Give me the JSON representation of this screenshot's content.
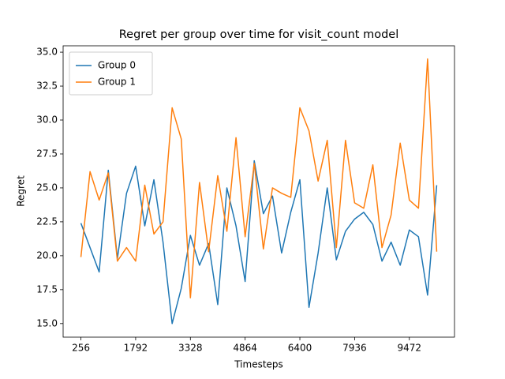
{
  "chart_data": {
    "type": "line",
    "title": "Regret per group over time for visit_count model",
    "x_label": "Timesteps",
    "y_label": "Regret",
    "x": [
      256,
      512,
      768,
      1024,
      1280,
      1536,
      1792,
      2048,
      2304,
      2560,
      2816,
      3072,
      3328,
      3584,
      3840,
      4096,
      4352,
      4608,
      4864,
      5120,
      5376,
      5632,
      5888,
      6144,
      6400,
      6656,
      6912,
      7168,
      7424,
      7680,
      7936,
      8192,
      8448,
      8704,
      8960,
      9216,
      9472,
      9728,
      9984,
      10240
    ],
    "series": [
      {
        "name": "Group 0",
        "color": "#1f77b4",
        "values": [
          22.4,
          20.6,
          18.8,
          26.3,
          19.8,
          24.6,
          26.6,
          22.2,
          25.6,
          21.0,
          15.0,
          17.6,
          21.5,
          19.3,
          20.9,
          16.4,
          25.0,
          22.2,
          18.1,
          27.0,
          23.1,
          24.4,
          20.2,
          23.2,
          25.6,
          16.2,
          20.2,
          25.0,
          19.7,
          21.8,
          22.7,
          23.2,
          22.3,
          19.6,
          21.0,
          19.3,
          21.9,
          21.4,
          17.1,
          25.2
        ]
      },
      {
        "name": "Group 1",
        "color": "#ff7f0e",
        "values": [
          19.9,
          26.2,
          24.1,
          26.1,
          19.6,
          20.6,
          19.6,
          25.2,
          21.6,
          22.5,
          30.9,
          28.6,
          16.9,
          25.4,
          20.3,
          25.9,
          21.8,
          28.7,
          21.4,
          26.8,
          20.5,
          25.0,
          24.6,
          24.3,
          30.9,
          29.2,
          25.5,
          28.5,
          20.6,
          28.5,
          23.9,
          23.5,
          26.7,
          20.6,
          23.0,
          28.3,
          24.1,
          23.5,
          34.5,
          20.3
        ]
      }
    ],
    "xlim": [
      -243.2,
      10739.2
    ],
    "xticks": [
      256,
      1792,
      3328,
      4864,
      6400,
      7936,
      9472
    ],
    "ylim": [
      14.0,
      35.47
    ],
    "yticks": [
      {
        "value": 15,
        "label": "15.0"
      },
      {
        "value": 17.5,
        "label": "17.5"
      },
      {
        "value": 20,
        "label": "20.0"
      },
      {
        "value": 22.5,
        "label": "22.5"
      },
      {
        "value": 25,
        "label": "25.0"
      },
      {
        "value": 27.5,
        "label": "27.5"
      },
      {
        "value": 30,
        "label": "30.0"
      },
      {
        "value": 32.5,
        "label": "32.5"
      },
      {
        "value": 35,
        "label": "35.0"
      }
    ],
    "legend": "upper left",
    "grid": false
  }
}
